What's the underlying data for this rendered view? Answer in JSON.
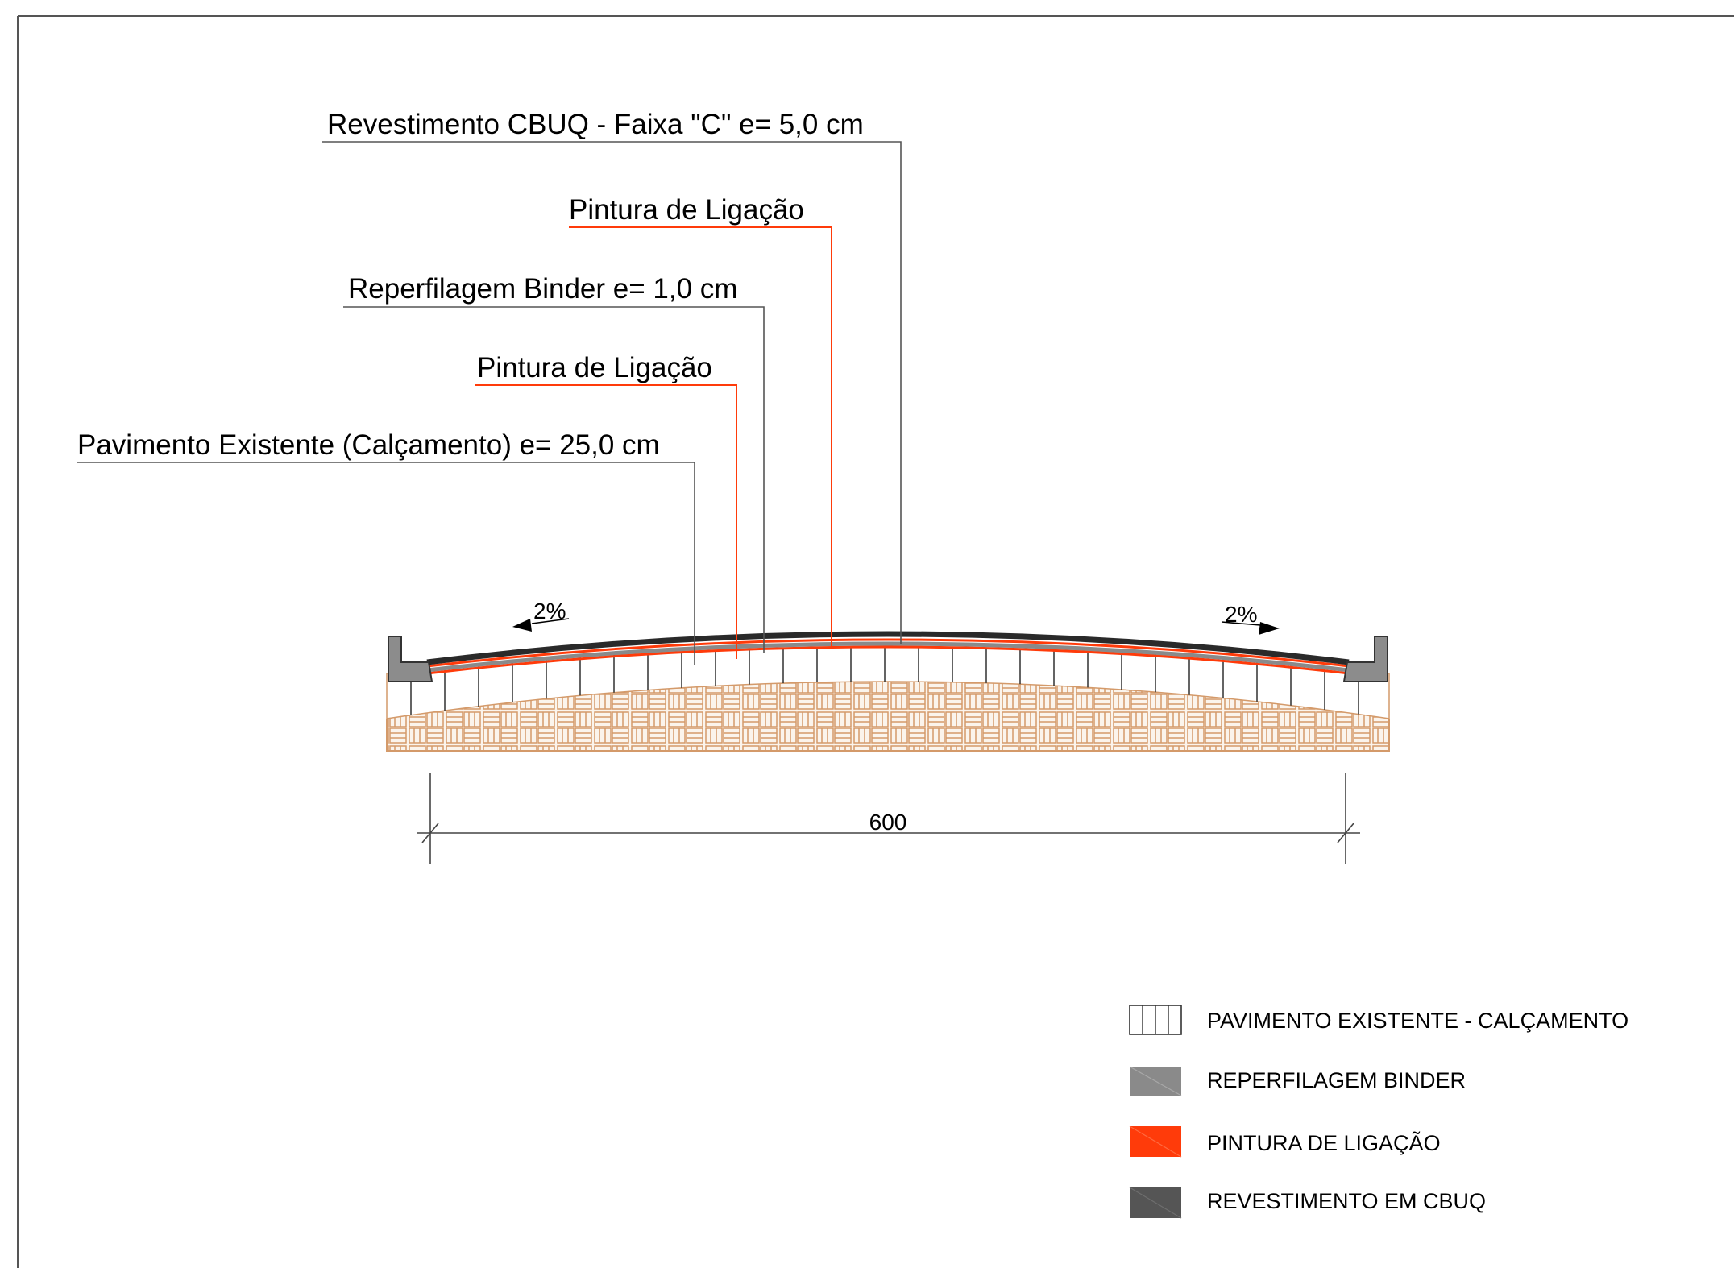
{
  "callouts": [
    {
      "label": "Revestimento CBUQ - Faixa \"C\" e= 5,0 cm",
      "color": "#000000"
    },
    {
      "label": "Pintura de Ligação",
      "color": "#ff3b0a"
    },
    {
      "label": "Reperfilagem Binder e= 1,0 cm",
      "color": "#000000"
    },
    {
      "label": "Pintura de Ligação",
      "color": "#ff3b0a"
    },
    {
      "label": "Pavimento Existente (Calçamento) e= 25,0 cm",
      "color": "#000000"
    }
  ],
  "slopes": {
    "left": "2%",
    "right": "2%"
  },
  "dimension": {
    "width_label": "600"
  },
  "legend": [
    {
      "label": "PAVIMENTO EXISTENTE - CALÇAMENTO",
      "swatch": "hatch-vertical",
      "color": "#ffffff"
    },
    {
      "label": "REPERFILAGEM BINDER",
      "swatch": "solid",
      "color": "#8a8a8a"
    },
    {
      "label": "PINTURA DE LIGAÇÃO",
      "swatch": "solid",
      "color": "#ff3b0a"
    },
    {
      "label": "REVESTIMENTO EM CBUQ",
      "swatch": "solid",
      "color": "#555555"
    }
  ],
  "colors": {
    "orange": "#ff3b0a",
    "binder_gray": "#8a8a8a",
    "cbuq_dark": "#2a2a2a",
    "curb_gray": "#8c8c8c",
    "subbase_tan": "#d9a070"
  }
}
